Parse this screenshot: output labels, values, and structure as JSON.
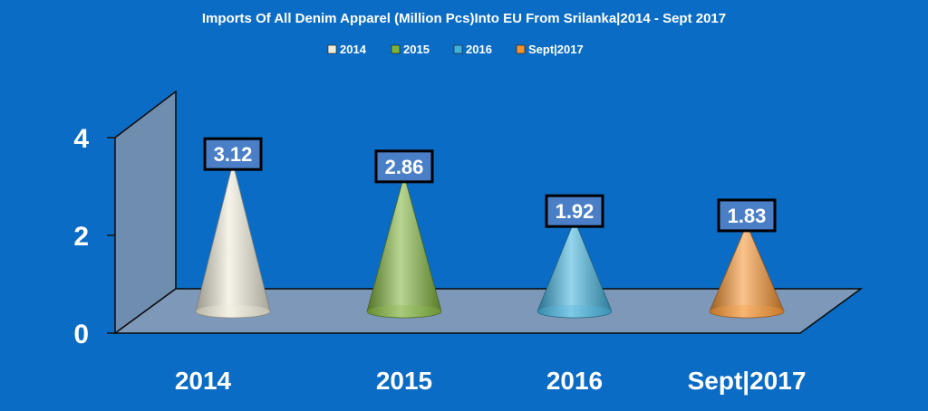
{
  "chart_data": {
    "type": "bar",
    "shape": "cone",
    "title": "Imports Of All Denim Apparel (Million Pcs)Into EU From Srilanka|2014 - Sept 2017",
    "categories": [
      "2014",
      "2015",
      "2016",
      "Sept|2017"
    ],
    "values": [
      3.12,
      2.86,
      1.92,
      1.83
    ],
    "data_labels": [
      "3.12",
      "2.86",
      "1.92",
      "1.83"
    ],
    "legend": [
      "2014",
      "2015",
      "2016",
      "Sept|2017"
    ],
    "legend_position": "top",
    "colors": [
      "#eeebd8",
      "#7fb23a",
      "#3fb0dc",
      "#f5922d"
    ],
    "background": "#0a6cc4",
    "yticks": [
      0,
      2,
      4
    ],
    "ytick_labels": [
      "0",
      "2",
      "4"
    ],
    "ylim": [
      0,
      4
    ],
    "xlabel": "",
    "ylabel": "",
    "grid": false
  }
}
